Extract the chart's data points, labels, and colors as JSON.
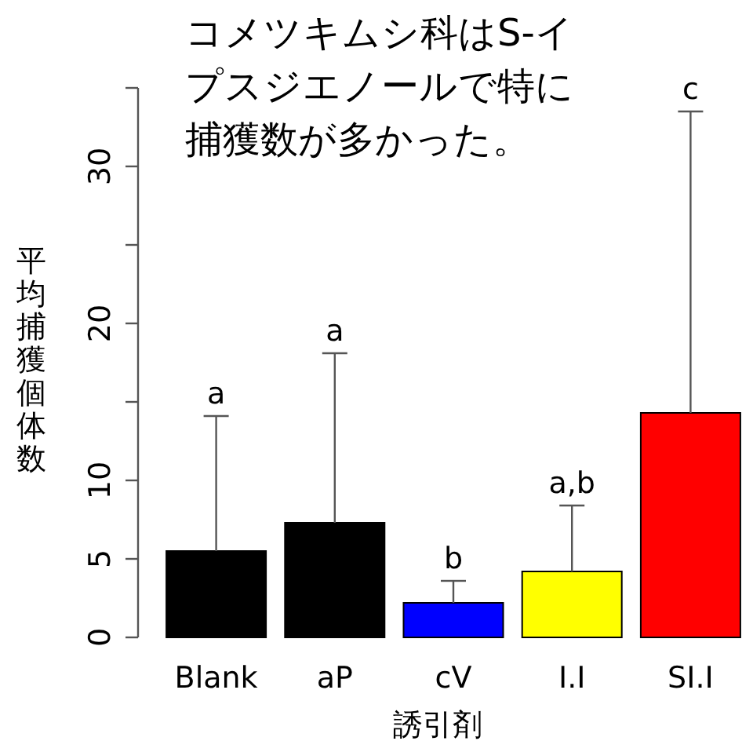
{
  "chart_data": {
    "type": "bar",
    "xlabel": "誘引剤",
    "ylabel": "平均捕獲個体数",
    "categories": [
      "Blank",
      "aP",
      "cV",
      "I.I",
      "SI.I"
    ],
    "values": [
      5.5,
      7.3,
      2.2,
      4.2,
      14.3
    ],
    "colors": [
      "#000000",
      "#000000",
      "#0000ff",
      "#ffff00",
      "#ff0000"
    ],
    "errors": [
      [
        5.5,
        14.1
      ],
      [
        7.3,
        18.1
      ],
      [
        2.2,
        3.6
      ],
      [
        4.2,
        8.4
      ],
      [
        14.3,
        33.5
      ]
    ],
    "ylim": [
      0,
      35
    ],
    "yticks": [
      0,
      5,
      10,
      {
        "value": 15,
        "label": null
      },
      20,
      {
        "value": 25,
        "label": null
      },
      30,
      {
        "value": 35,
        "label": null
      }
    ],
    "annotations": [
      "コメツキムシ科はS-イプスジエノールで特に捕獲数が多かった。",
      {
        "text": "a",
        "x": "Blank",
        "y": 14.1
      },
      {
        "text": "a",
        "x": "aP",
        "y": 18.1
      },
      {
        "text": "b",
        "x": "cV",
        "y": 3.6
      },
      {
        "text": "a,b",
        "x": "I.I",
        "y": 8.4
      },
      {
        "text": "c",
        "x": "SI.I",
        "y": 33.5
      }
    ]
  }
}
